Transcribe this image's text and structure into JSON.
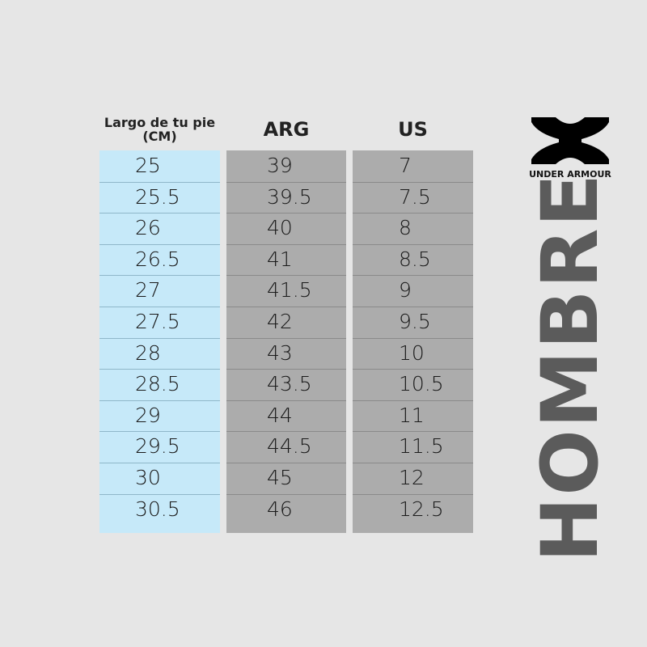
{
  "header": {
    "columns": [
      "Largo de tu pie (CM)",
      "ARG",
      "US"
    ]
  },
  "table": {
    "rows": [
      [
        25,
        39,
        7
      ],
      [
        25.5,
        39.5,
        7.5
      ],
      [
        26,
        40,
        8
      ],
      [
        26.5,
        41,
        8.5
      ],
      [
        27,
        41.5,
        9
      ],
      [
        27.5,
        42,
        9.5
      ],
      [
        28,
        43,
        10
      ],
      [
        28.5,
        43.5,
        10.5
      ],
      [
        29,
        44,
        11
      ],
      [
        29.5,
        44.5,
        11.5
      ],
      [
        30,
        45,
        12
      ],
      [
        30.5,
        46,
        12.5
      ]
    ]
  },
  "logo": {
    "brand": "UNDER ARMOUR"
  },
  "side_label": "HOMBRE"
}
